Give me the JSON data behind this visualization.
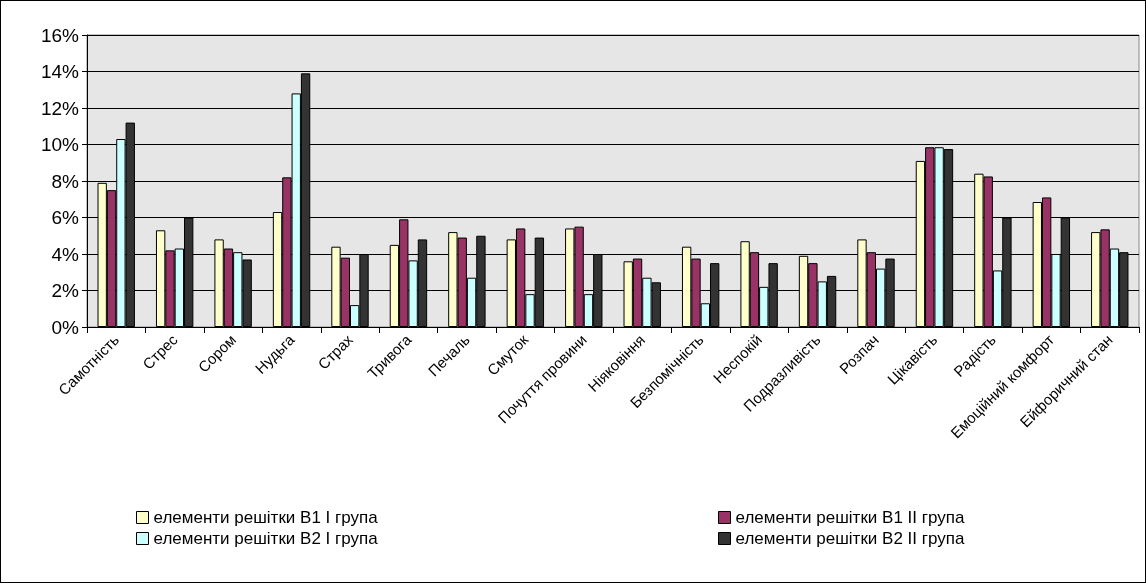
{
  "chart_data": {
    "type": "bar",
    "categories": [
      "Самотність",
      "Стрес",
      "Сором",
      "Нудьга",
      "Страх",
      "Тривога",
      "Печаль",
      "Смуток",
      "Почуття провини",
      "Ніяковіння",
      "Безпомічність",
      "Неспокій",
      "Подразливість",
      "Розпач",
      "Цікавість",
      "Радість",
      "Емоційний комфорт",
      "Ейфоричний стан"
    ],
    "series": [
      {
        "name": "елементи решітки В1 І група",
        "color": "#ffffcc",
        "values": [
          7.9,
          5.3,
          4.8,
          6.3,
          4.4,
          4.5,
          5.2,
          4.8,
          5.4,
          3.6,
          4.4,
          4.7,
          3.9,
          4.8,
          9.1,
          8.4,
          6.85,
          5.2
        ]
      },
      {
        "name": "елементи решітки В1 ІІ група",
        "color": "#993366",
        "values": [
          7.5,
          4.2,
          4.3,
          8.2,
          3.8,
          5.9,
          4.9,
          5.4,
          5.5,
          3.75,
          3.75,
          4.1,
          3.5,
          4.1,
          9.85,
          8.25,
          7.1,
          5.35
        ]
      },
      {
        "name": "елементи решітки В2 І група",
        "color": "#ccffff",
        "values": [
          10.3,
          4.3,
          4.1,
          12.8,
          1.2,
          3.65,
          2.7,
          1.8,
          1.8,
          2.7,
          1.3,
          2.2,
          2.5,
          3.2,
          9.85,
          3.1,
          4.0,
          4.3
        ]
      },
      {
        "name": "елементи решітки В2 ІІ група",
        "color": "#333333",
        "values": [
          11.2,
          6.0,
          3.7,
          13.9,
          4.0,
          4.8,
          5.0,
          4.9,
          4.0,
          2.45,
          3.5,
          3.5,
          2.8,
          3.75,
          9.75,
          6.0,
          6.0,
          4.1
        ]
      }
    ],
    "ylim": [
      0,
      16
    ],
    "yticks": [
      {
        "value": 0,
        "label": "0%"
      },
      {
        "value": 2,
        "label": "2%"
      },
      {
        "value": 4,
        "label": "4%"
      },
      {
        "value": 6,
        "label": "6%"
      },
      {
        "value": 8,
        "label": "8%"
      },
      {
        "value": 10,
        "label": "10%"
      },
      {
        "value": 12,
        "label": "12%"
      },
      {
        "value": 14,
        "label": "14%"
      },
      {
        "value": 16,
        "label": "16%"
      }
    ],
    "grid": "y",
    "legend": "bottom"
  }
}
